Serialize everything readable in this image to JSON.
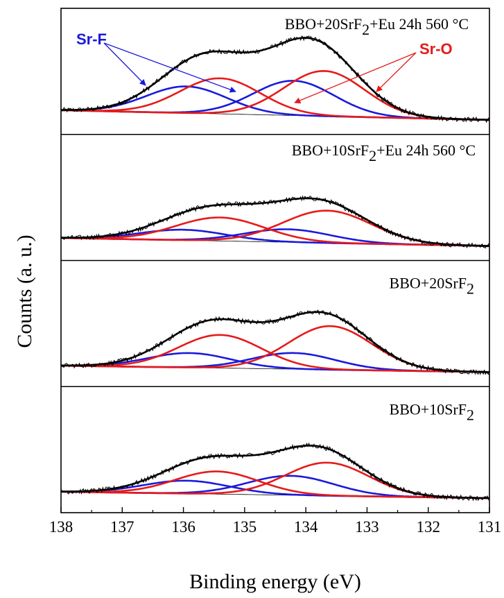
{
  "colors": {
    "sr_f": "#1a1adb",
    "sr_o": "#e61a1a",
    "envelope": "#000000",
    "raw": "#000000",
    "background": "#000000"
  },
  "axis": {
    "xlabel": "Binding energy (eV)",
    "ylabel": "Counts (a. u.)"
  },
  "annotations": {
    "sr_f": "Sr-F",
    "sr_o": "Sr-O"
  },
  "chart_data": {
    "type": "line",
    "xlabel": "Binding energy (eV)",
    "ylabel": "Counts (a. u.)",
    "xlim": [
      138,
      131
    ],
    "x_reversed": true,
    "xticks": [
      138,
      137,
      136,
      135,
      134,
      133,
      132,
      131
    ],
    "panels": [
      {
        "label_parts": [
          "BBO+20SrF",
          "2",
          "+Eu 24h 560 °C"
        ],
        "background": {
          "x": [
            138,
            131
          ],
          "y": [
            0.12,
            0.0
          ]
        },
        "series": [
          {
            "name": "Sr-F",
            "component": "sr_f",
            "peaks": [
              {
                "center": 135.95,
                "amp": 0.33,
                "fwhm": 1.55
              },
              {
                "center": 134.2,
                "amp": 0.43,
                "fwhm": 1.55
              }
            ]
          },
          {
            "name": "Sr-O",
            "component": "sr_o",
            "peaks": [
              {
                "center": 135.4,
                "amp": 0.44,
                "fwhm": 1.55
              },
              {
                "center": 133.7,
                "amp": 0.56,
                "fwhm": 1.55
              }
            ]
          }
        ]
      },
      {
        "label_parts": [
          "BBO+10SrF",
          "2",
          "+Eu 24h 560 °C"
        ],
        "background": {
          "x": [
            138,
            131
          ],
          "y": [
            0.1,
            0.0
          ]
        },
        "series": [
          {
            "name": "Sr-F",
            "component": "sr_f",
            "peaks": [
              {
                "center": 136.0,
                "amp": 0.13,
                "fwhm": 1.65
              },
              {
                "center": 134.3,
                "amp": 0.16,
                "fwhm": 1.65
              }
            ]
          },
          {
            "name": "Sr-O",
            "component": "sr_o",
            "peaks": [
              {
                "center": 135.4,
                "amp": 0.29,
                "fwhm": 1.7
              },
              {
                "center": 133.65,
                "amp": 0.4,
                "fwhm": 1.7
              }
            ]
          }
        ]
      },
      {
        "label_parts": [
          "BBO+20SrF",
          "2",
          ""
        ],
        "background": {
          "x": [
            138,
            131
          ],
          "y": [
            0.08,
            0.0
          ]
        },
        "series": [
          {
            "name": "Sr-F",
            "component": "sr_f",
            "peaks": [
              {
                "center": 135.9,
                "amp": 0.18,
                "fwhm": 1.6
              },
              {
                "center": 134.2,
                "amp": 0.2,
                "fwhm": 1.6
              }
            ]
          },
          {
            "name": "Sr-O",
            "component": "sr_o",
            "peaks": [
              {
                "center": 135.4,
                "amp": 0.41,
                "fwhm": 1.6
              },
              {
                "center": 133.6,
                "amp": 0.54,
                "fwhm": 1.6
              }
            ]
          }
        ]
      },
      {
        "label_parts": [
          "BBO+10SrF",
          "2",
          ""
        ],
        "background": {
          "x": [
            138,
            131
          ],
          "y": [
            0.08,
            0.0
          ]
        },
        "series": [
          {
            "name": "Sr-F",
            "component": "sr_f",
            "peaks": [
              {
                "center": 135.95,
                "amp": 0.16,
                "fwhm": 1.65
              },
              {
                "center": 134.25,
                "amp": 0.24,
                "fwhm": 1.65
              }
            ]
          },
          {
            "name": "Sr-O",
            "component": "sr_o",
            "peaks": [
              {
                "center": 135.45,
                "amp": 0.28,
                "fwhm": 1.6
              },
              {
                "center": 133.65,
                "amp": 0.41,
                "fwhm": 1.6
              }
            ]
          }
        ]
      }
    ]
  }
}
